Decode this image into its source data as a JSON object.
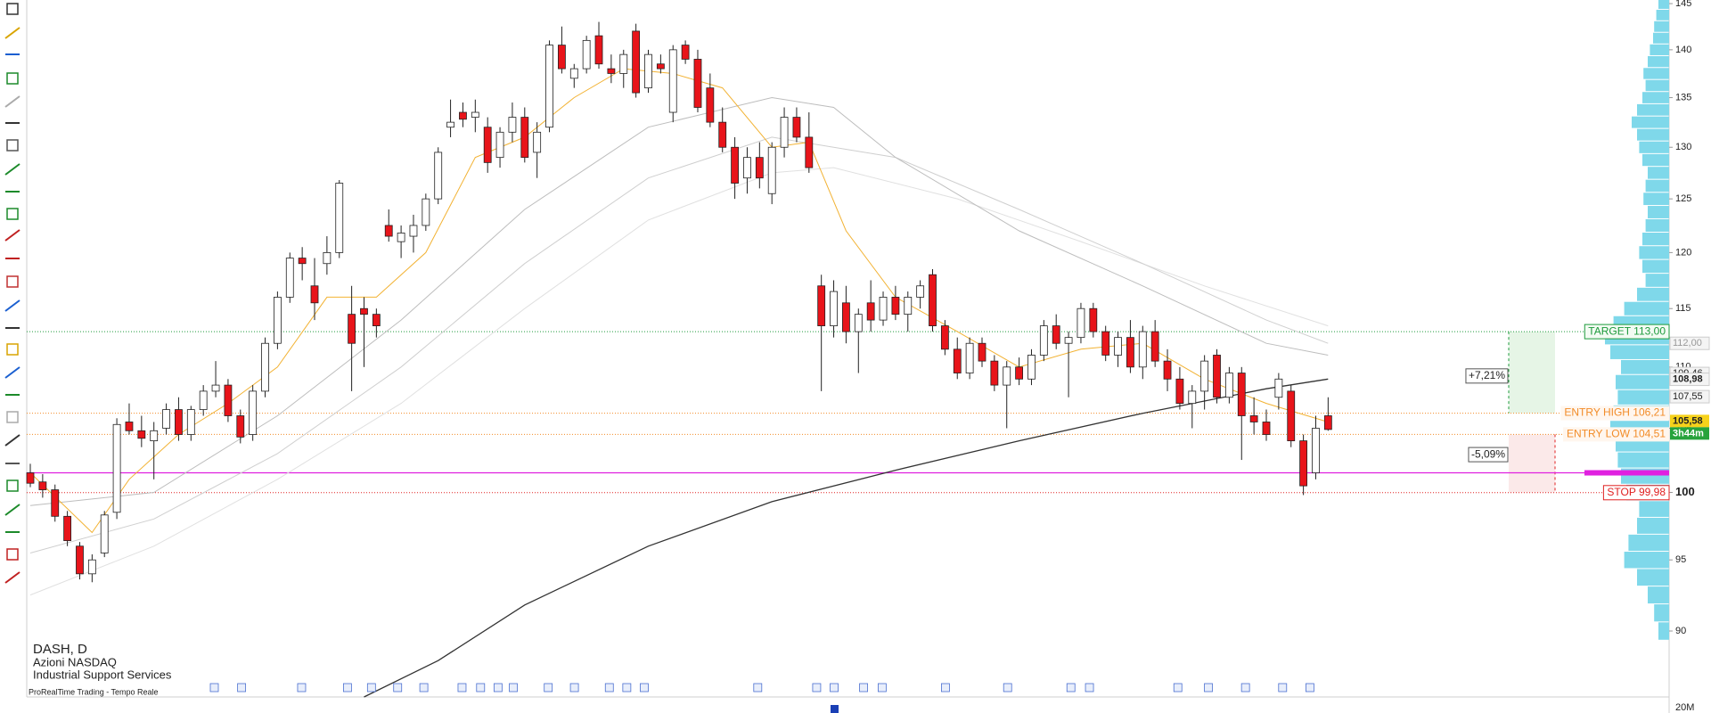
{
  "chart_data": {
    "type": "candlestick",
    "log": true,
    "ylim": [
      85.6,
      145.4
    ],
    "yticks": [
      90,
      95,
      100,
      105,
      110,
      115,
      120,
      125,
      130,
      135,
      140,
      145
    ],
    "up_color": "#ffffff",
    "down_color": "#e8141a",
    "ohlc": [
      [
        101.5,
        102.2,
        100.4,
        100.7
      ],
      [
        100.8,
        101.4,
        99.6,
        100.2
      ],
      [
        100.2,
        100.6,
        97.8,
        98.2
      ],
      [
        98.2,
        98.6,
        96.0,
        96.4
      ],
      [
        96.0,
        96.3,
        93.6,
        94.0
      ],
      [
        94.0,
        95.4,
        93.4,
        95.0
      ],
      [
        95.5,
        98.6,
        95.2,
        98.3
      ],
      [
        98.5,
        105.8,
        98.0,
        105.3
      ],
      [
        105.5,
        107.0,
        104.5,
        104.8
      ],
      [
        104.8,
        106.0,
        103.5,
        104.2
      ],
      [
        104.0,
        105.5,
        101.0,
        104.8
      ],
      [
        105.0,
        107.0,
        104.5,
        106.5
      ],
      [
        106.5,
        107.5,
        104.0,
        104.5
      ],
      [
        104.5,
        106.8,
        104.0,
        106.5
      ],
      [
        106.5,
        108.5,
        106.0,
        108.0
      ],
      [
        108.0,
        110.5,
        107.5,
        108.5
      ],
      [
        108.5,
        109.0,
        105.5,
        106.0
      ],
      [
        106.0,
        106.5,
        103.8,
        104.3
      ],
      [
        104.5,
        108.5,
        104.0,
        108.0
      ],
      [
        108.0,
        112.5,
        107.5,
        112.0
      ],
      [
        112.0,
        116.5,
        111.5,
        116.0
      ],
      [
        116.0,
        120.0,
        115.5,
        119.5
      ],
      [
        119.5,
        120.5,
        117.5,
        119.0
      ],
      [
        117.0,
        119.5,
        114.0,
        115.5
      ],
      [
        119.0,
        121.5,
        118.0,
        120.0
      ],
      [
        120.0,
        126.8,
        119.5,
        126.5
      ],
      [
        114.5,
        117.0,
        108.0,
        112.0
      ],
      [
        115.0,
        116.0,
        110.0,
        114.5
      ],
      [
        114.5,
        115.0,
        112.5,
        113.5
      ],
      [
        122.5,
        124.0,
        121.0,
        121.5
      ],
      [
        121.0,
        122.5,
        119.5,
        121.8
      ],
      [
        121.5,
        123.5,
        120.0,
        122.5
      ],
      [
        122.5,
        125.5,
        122.0,
        125.0
      ],
      [
        125.0,
        130.0,
        124.5,
        129.5
      ],
      [
        132.0,
        134.8,
        131.0,
        132.5
      ],
      [
        133.5,
        134.5,
        132.0,
        132.8
      ],
      [
        133.0,
        134.8,
        131.5,
        133.5
      ],
      [
        132.0,
        133.0,
        127.5,
        128.5
      ],
      [
        129.0,
        132.0,
        128.0,
        131.5
      ],
      [
        131.5,
        134.5,
        130.5,
        133.0
      ],
      [
        133.0,
        134.0,
        128.5,
        129.0
      ],
      [
        129.5,
        132.5,
        127.0,
        131.5
      ],
      [
        132.0,
        141.0,
        131.5,
        140.5
      ],
      [
        140.5,
        142.5,
        137.5,
        138.0
      ],
      [
        137.0,
        138.5,
        136.0,
        138.0
      ],
      [
        138.0,
        141.5,
        137.5,
        141.0
      ],
      [
        141.5,
        143.0,
        138.0,
        138.5
      ],
      [
        138.0,
        139.5,
        136.5,
        137.5
      ],
      [
        137.5,
        140.0,
        136.0,
        139.5
      ],
      [
        142.0,
        142.8,
        135.0,
        135.5
      ],
      [
        136.0,
        140.0,
        135.5,
        139.5
      ],
      [
        138.5,
        139.5,
        137.5,
        138.0
      ],
      [
        133.5,
        140.5,
        132.5,
        140.0
      ],
      [
        140.5,
        141.0,
        138.5,
        139.0
      ],
      [
        139.0,
        140.0,
        133.5,
        134.0
      ],
      [
        136.0,
        137.5,
        132.0,
        132.5
      ],
      [
        132.5,
        134.0,
        129.5,
        130.0
      ],
      [
        130.0,
        131.0,
        125.0,
        126.5
      ],
      [
        127.0,
        130.0,
        125.5,
        129.0
      ],
      [
        129.0,
        130.5,
        126.0,
        127.0
      ],
      [
        125.5,
        130.5,
        124.5,
        130.0
      ],
      [
        130.0,
        134.0,
        129.0,
        133.0
      ],
      [
        133.0,
        134.0,
        130.5,
        131.0
      ],
      [
        131.0,
        133.5,
        127.5,
        128.0
      ],
      [
        117.0,
        118.0,
        108.0,
        113.5
      ],
      [
        113.5,
        117.5,
        112.5,
        116.5
      ],
      [
        115.5,
        117.0,
        112.0,
        113.0
      ],
      [
        113.0,
        115.0,
        109.5,
        114.5
      ],
      [
        115.5,
        117.5,
        113.0,
        114.0
      ],
      [
        114.0,
        116.5,
        113.5,
        116.0
      ],
      [
        116.0,
        117.0,
        114.0,
        114.5
      ],
      [
        114.5,
        116.5,
        113.0,
        116.0
      ],
      [
        116.0,
        117.5,
        115.0,
        117.0
      ],
      [
        118.0,
        118.5,
        113.0,
        113.5
      ],
      [
        113.5,
        114.0,
        111.0,
        111.5
      ],
      [
        111.5,
        112.5,
        109.0,
        109.5
      ],
      [
        109.5,
        112.5,
        109.0,
        112.0
      ],
      [
        112.0,
        112.5,
        110.0,
        110.5
      ],
      [
        110.5,
        111.0,
        108.0,
        108.5
      ],
      [
        108.5,
        110.5,
        105.0,
        110.0
      ],
      [
        110.0,
        110.8,
        108.5,
        109.0
      ],
      [
        109.0,
        111.5,
        108.5,
        111.0
      ],
      [
        111.0,
        114.0,
        110.5,
        113.5
      ],
      [
        113.5,
        114.5,
        111.5,
        112.0
      ],
      [
        112.0,
        113.0,
        107.5,
        112.5
      ],
      [
        112.5,
        115.5,
        112.0,
        115.0
      ],
      [
        115.0,
        115.5,
        112.5,
        113.0
      ],
      [
        113.0,
        113.5,
        110.5,
        111.0
      ],
      [
        111.0,
        113.0,
        110.0,
        112.5
      ],
      [
        112.5,
        114.0,
        109.5,
        110.0
      ],
      [
        110.0,
        113.5,
        109.0,
        113.0
      ],
      [
        113.0,
        114.0,
        110.0,
        110.5
      ],
      [
        110.5,
        111.5,
        108.0,
        109.0
      ],
      [
        109.0,
        110.0,
        106.5,
        107.0
      ],
      [
        107.0,
        108.5,
        105.0,
        108.0
      ],
      [
        108.0,
        111.0,
        106.5,
        110.5
      ],
      [
        111.0,
        111.5,
        107.0,
        107.5
      ],
      [
        107.5,
        110.0,
        107.0,
        109.5
      ],
      [
        109.5,
        110.0,
        102.5,
        106.0
      ],
      [
        106.0,
        107.5,
        104.5,
        105.5
      ],
      [
        105.5,
        106.5,
        104.0,
        104.5
      ],
      [
        107.5,
        109.5,
        106.5,
        109.0
      ],
      [
        108.0,
        108.5,
        103.5,
        104.0
      ],
      [
        104.0,
        104.5,
        99.8,
        100.5
      ],
      [
        101.5,
        106.0,
        101.0,
        105.0
      ],
      [
        106.0,
        107.5,
        104.8,
        104.9
      ]
    ],
    "moving_averages": [
      {
        "color": "#e0e0e0",
        "x": [
          0,
          10,
          20,
          30,
          40,
          50,
          60,
          65,
          75,
          85,
          95,
          105
        ],
        "values": [
          92.5,
          96,
          101,
          107,
          115,
          123,
          127.5,
          128,
          125,
          121,
          117,
          113.5
        ]
      },
      {
        "color": "#cfcfcf",
        "x": [
          0,
          10,
          20,
          30,
          40,
          50,
          60,
          70,
          80,
          90,
          100,
          105
        ],
        "values": [
          95.5,
          98,
          103,
          110,
          119,
          127,
          131,
          129,
          124,
          119,
          114,
          112
        ]
      },
      {
        "color": "#bdbdbd",
        "x": [
          0,
          10,
          20,
          30,
          40,
          50,
          60,
          65,
          70,
          80,
          90,
          100,
          105
        ],
        "values": [
          99,
          100,
          106,
          114,
          124,
          132,
          135,
          134,
          129,
          122,
          117,
          112,
          111
        ]
      },
      {
        "color": "#f2b233",
        "x": [
          0,
          5,
          8,
          12,
          16,
          20,
          24,
          28,
          32,
          36,
          40,
          44,
          48,
          52,
          56,
          60,
          63,
          66,
          70,
          75,
          80,
          85,
          90,
          95,
          100,
          105
        ],
        "values": [
          101.5,
          97,
          101,
          104.5,
          107,
          110,
          116,
          116,
          120,
          129,
          131,
          135,
          138,
          137.5,
          136,
          130,
          130.5,
          122,
          116,
          113,
          110,
          111.5,
          112,
          109,
          107,
          105.5
        ]
      },
      {
        "color": "#333333",
        "x": [
          27,
          33,
          40,
          50,
          60,
          70,
          80,
          90,
          100,
          105
        ],
        "values": [
          85.6,
          88,
          91.8,
          96,
          99.3,
          101.7,
          104,
          106.2,
          108.2,
          109
        ]
      }
    ],
    "levels": [
      {
        "label": "TARGET 113,00",
        "value": 113,
        "color": "#1e9b3c"
      },
      {
        "label": "ENTRY HIGH 106,21",
        "value": 106.21,
        "color": "#f28c28"
      },
      {
        "label": "ENTRY LOW 104,51",
        "value": 104.51,
        "color": "#f28c28"
      },
      {
        "label": "STOP 99,98",
        "value": 99.98,
        "color": "#e02020"
      }
    ],
    "support_line": {
      "value": 101.5,
      "color": "#e020e0"
    },
    "position_box": {
      "gain_label": "+7,21%",
      "loss_label": "-5,09%"
    },
    "price_markers": [
      {
        "value": 112,
        "label": "112,00"
      },
      {
        "value": 109.46,
        "label": "109,46"
      },
      {
        "value": 108.98,
        "label": "108,98"
      },
      {
        "value": 107.55,
        "label": "107,55"
      },
      {
        "value": 105.58,
        "label": "105,58"
      }
    ],
    "countdown": "3h44m",
    "volume_profile": {
      "color": "#7fd8ea",
      "xlim": [
        0,
        100
      ],
      "prices": [
        90,
        91.25,
        92.5,
        93.75,
        95,
        96.25,
        97.5,
        98.75,
        100,
        101.25,
        102.5,
        103.75,
        105,
        106.25,
        107.5,
        108.75,
        110,
        111.25,
        112.5,
        113.75,
        115,
        116.25,
        117.5,
        118.75,
        120,
        121.25,
        122.5,
        123.75,
        125,
        126.25,
        127.5,
        128.75,
        130,
        131.25,
        132.5,
        133.75,
        135,
        136.25,
        137.5,
        138.75,
        140,
        141.25,
        142.5,
        143.75,
        145
      ],
      "values": [
        10,
        14,
        20,
        30,
        42,
        38,
        30,
        28,
        40,
        45,
        48,
        50,
        55,
        52,
        48,
        50,
        45,
        55,
        60,
        52,
        42,
        30,
        22,
        25,
        28,
        25,
        22,
        20,
        24,
        22,
        20,
        25,
        28,
        30,
        35,
        30,
        25,
        22,
        24,
        20,
        18,
        15,
        14,
        12,
        10
      ]
    },
    "volume_label": "20M",
    "symbol": "DASH, D",
    "market": "Azioni NASDAQ",
    "sector": "Industrial Support Services",
    "source": "ProRealTime Trading - Tempo Reale"
  }
}
